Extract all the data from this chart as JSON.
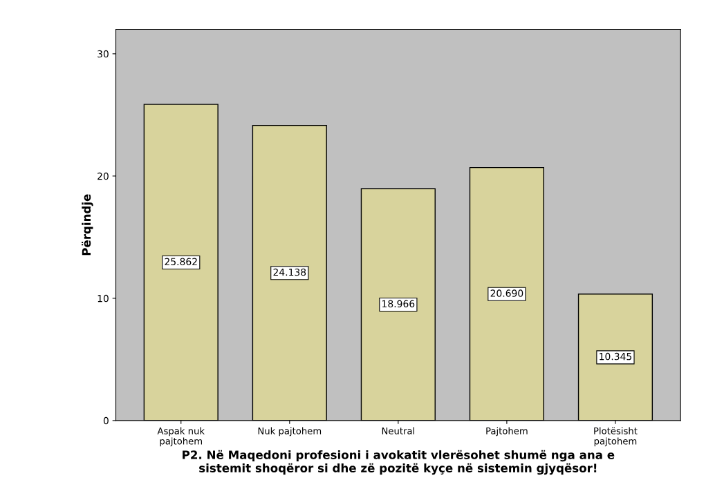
{
  "chart_data": {
    "type": "bar",
    "xlabel": "P2. Në Maqedoni profesioni i avokatit vlerësohet shumë nga ana e\nsistemit shoqëror si dhe zë pozitë kyçe në sistemin gjyqësor!",
    "ylabel": "Përqindje",
    "categories": [
      "Aspak nuk\npajtohem",
      "Nuk pajtohem",
      "Neutral",
      "Pajtohem",
      "Plotësisht\npajtohem"
    ],
    "values": [
      25.862,
      24.138,
      18.966,
      20.69,
      10.345
    ],
    "value_labels": [
      "25.862",
      "24.138",
      "18.966",
      "20.690",
      "10.345"
    ],
    "color": "#d8d39c",
    "ylim": [
      0,
      32
    ],
    "yticks": [
      0,
      10,
      20,
      30
    ],
    "grid": false,
    "legend": false
  }
}
